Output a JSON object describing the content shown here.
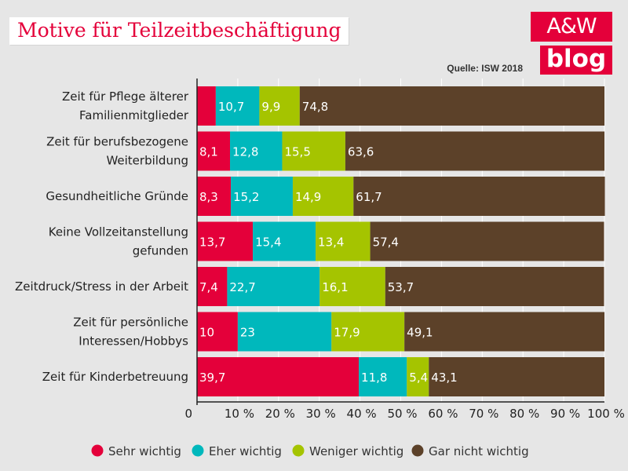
{
  "header": {
    "title": "Motive für Teilzeitbeschäftigung",
    "logo_line1": "A&W",
    "logo_line2": "blog",
    "source": "Quelle: ISW 2018"
  },
  "colors": {
    "accent": "#e4003a",
    "background": "#e6e6e6"
  },
  "chart_data": {
    "type": "bar",
    "orientation": "horizontal",
    "stacked": true,
    "categories": [
      [
        "Zeit für Pflege älterer",
        "Familienmitglieder"
      ],
      [
        "Zeit für berufsbezogene",
        "Weiterbildung"
      ],
      [
        "Gesundheitliche Gründe"
      ],
      [
        "Keine Vollzeitanstellung",
        "gefunden"
      ],
      [
        "Zeitdruck/Stress in der Arbeit"
      ],
      [
        "Zeit für persönliche",
        "Interessen/Hobbys"
      ],
      [
        "Zeit für Kinderbetreuung"
      ]
    ],
    "series": [
      {
        "name": "Sehr wichtig",
        "color": "#e4003a",
        "values": [
          4.6,
          8.1,
          8.3,
          13.7,
          7.4,
          10,
          39.7
        ],
        "labels": [
          "",
          "8,1",
          "8,3",
          "13,7",
          "7,4",
          "10",
          "39,7"
        ]
      },
      {
        "name": "Eher wichtig",
        "color": "#00b8bc",
        "values": [
          10.7,
          12.8,
          15.2,
          15.4,
          22.7,
          23,
          11.8
        ],
        "labels": [
          "10,7",
          "12,8",
          "15,2",
          "15,4",
          "22,7",
          "23",
          "11,8"
        ]
      },
      {
        "name": "Weniger wichtig",
        "color": "#a5c400",
        "values": [
          9.9,
          15.5,
          14.9,
          13.4,
          16.1,
          17.9,
          5.4
        ],
        "labels": [
          "9,9",
          "15,5",
          "14,9",
          "13,4",
          "16,1",
          "17,9",
          "5,4"
        ]
      },
      {
        "name": "Gar nicht wichtig",
        "color": "#5c4129",
        "values": [
          74.8,
          63.6,
          61.7,
          57.4,
          53.7,
          49.1,
          43.1
        ],
        "labels": [
          "74,8",
          "63,6",
          "61,7",
          "57,4",
          "53,7",
          "49,1",
          "43,1"
        ]
      }
    ],
    "x_ticks": [
      "0",
      "10 %",
      "20 %",
      "30 %",
      "40 %",
      "50 %",
      "60 %",
      "70 %",
      "80 %",
      "90 %",
      "100 %"
    ],
    "xlim": [
      0,
      100
    ],
    "grid": true,
    "legend_position": "bottom"
  }
}
